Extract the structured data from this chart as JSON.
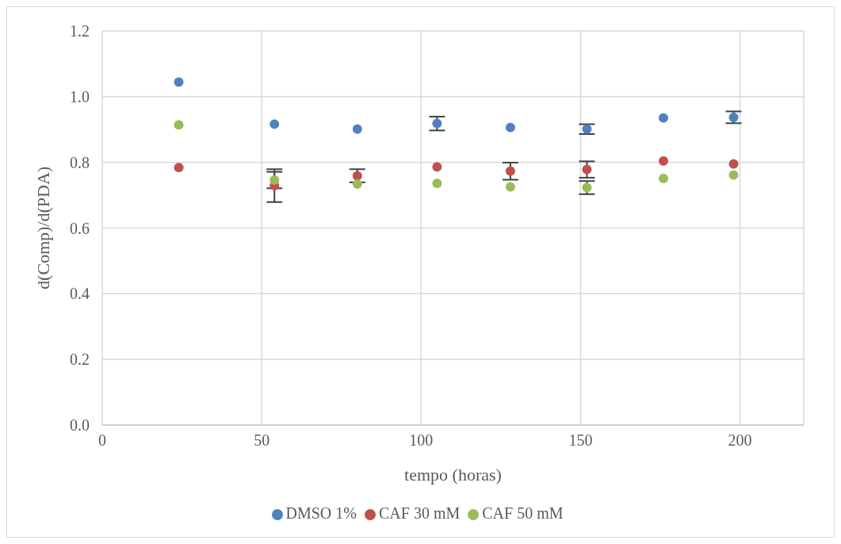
{
  "chart_data": {
    "type": "scatter",
    "xlabel": "tempo (horas)",
    "ylabel": "d(Comp)/d(PDA)",
    "x": [
      24,
      54,
      80,
      105,
      128,
      152,
      176,
      198
    ],
    "series": [
      {
        "name": "DMSO 1%",
        "color": "#4f81bd",
        "values": [
          1.044,
          0.916,
          0.901,
          0.918,
          0.906,
          0.901,
          0.935,
          0.937
        ],
        "errors": [
          null,
          null,
          null,
          0.021,
          null,
          0.015,
          null,
          0.018
        ]
      },
      {
        "name": "CAF 30 mM",
        "color": "#c0504d",
        "values": [
          0.784,
          0.729,
          0.759,
          0.786,
          0.773,
          0.778,
          0.804,
          0.795
        ],
        "errors": [
          null,
          0.05,
          0.02,
          null,
          0.026,
          0.025,
          null,
          null
        ]
      },
      {
        "name": "CAF 50 mM",
        "color": "#9bbb59",
        "values": [
          0.914,
          0.746,
          0.734,
          0.736,
          0.725,
          0.723,
          0.751,
          0.761
        ],
        "errors": [
          null,
          0.025,
          null,
          null,
          null,
          0.02,
          null,
          null
        ]
      }
    ],
    "xlim": [
      0,
      220
    ],
    "xticks": [
      0,
      50,
      100,
      150,
      200
    ],
    "ylim": [
      0,
      1.2
    ],
    "yticks": [
      {
        "value": 0,
        "label": "0.0"
      },
      {
        "value": 0.2,
        "label": "0.2"
      },
      {
        "value": 0.4,
        "label": "0.4"
      },
      {
        "value": 0.6,
        "label": "0.6"
      },
      {
        "value": 0.8,
        "label": "0.8"
      },
      {
        "value": 1.0,
        "label": "1.0"
      },
      {
        "value": 1.2,
        "label": "1.2"
      }
    ],
    "grid": true,
    "legend": "bottom",
    "marker": "circle"
  }
}
